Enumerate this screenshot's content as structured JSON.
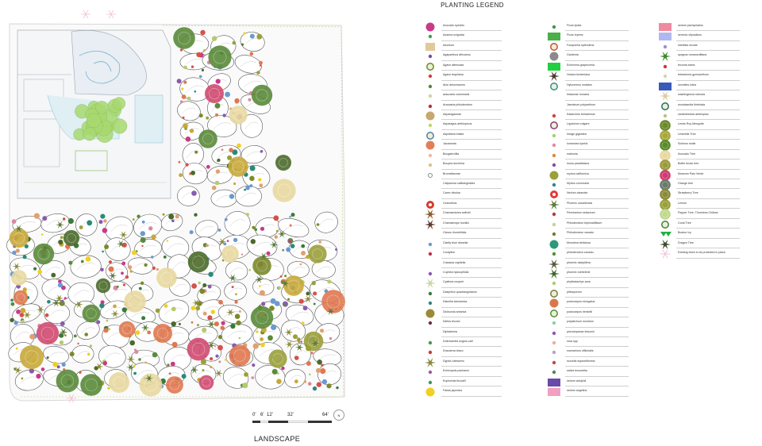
{
  "legend": {
    "title": "PLANTING LEGEND",
    "columns": [
      [
        {
          "label": "Avocado species",
          "icon": "pink-disc-icon",
          "color": "#c83a88"
        },
        {
          "label": "Acaena ovignata",
          "icon": "green-dot-icon",
          "color": "#3aa04a"
        },
        {
          "label": "Aeonium",
          "icon": "tan-square-icon",
          "color": "#e2c99a"
        },
        {
          "label": "Agapanthus africanus",
          "icon": "purple-dot-icon",
          "color": "#7a4aa0"
        },
        {
          "label": "Agave attenuata",
          "icon": "green-ring-icon",
          "color": "#6a8a2a"
        },
        {
          "label": "Agave tequilana",
          "icon": "red-dot-icon",
          "color": "#d0403a"
        },
        {
          "label": "Aloe arborescens",
          "icon": "green-dot-icon",
          "color": "#4e8a3a"
        },
        {
          "label": "araucaria columnaris",
          "icon": "pale-dot-icon",
          "color": "#c9d6a0"
        },
        {
          "label": "Araucaria philodendron",
          "icon": "red-dot-icon",
          "color": "#b8303a"
        },
        {
          "label": "Asparagaceae",
          "icon": "tan-disc-icon",
          "color": "#c8a870"
        },
        {
          "label": "Asparagus aethiopicus",
          "icon": "lime-dot-icon",
          "color": "#b9d86a"
        },
        {
          "label": "Aspidistra elatior",
          "icon": "blue-ring-icon",
          "color": "#5a7aa8"
        },
        {
          "label": "Jacaranda",
          "icon": "orange-pink-disc-icon",
          "color": "#e0805a"
        },
        {
          "label": "Bougainvillia",
          "icon": "peach-dot-icon",
          "color": "#f0b8a0"
        },
        {
          "label": "Bouyea dochrina",
          "icon": "tan-dot-icon",
          "color": "#e0c08a"
        },
        {
          "label": "Bromeliaceae",
          "icon": "open-circle-icon",
          "color": "#666666"
        },
        {
          "label": "Calystoma callistegioides",
          "icon": "none",
          "color": "#ffffff"
        },
        {
          "label": "Carex divulsa",
          "icon": "none",
          "color": "#ffffff"
        },
        {
          "label": "Ceanothus",
          "icon": "red-flower-icon",
          "color": "#d83a2a"
        },
        {
          "label": "Chamaedorea seifrizii",
          "icon": "star-palm-icon",
          "color": "#8a5a2a"
        },
        {
          "label": "Chamaerops humilis",
          "icon": "dark-star-icon",
          "color": "#5a3a2a"
        },
        {
          "label": "Cissus rhombifolia",
          "icon": "none",
          "color": "#ffffff"
        },
        {
          "label": "Clarity blue dianella",
          "icon": "blue-dot-icon",
          "color": "#6a9ad0"
        },
        {
          "label": "Cordyline",
          "icon": "red-dot-icon",
          "color": "#c0304a"
        },
        {
          "label": "Crassula capitella",
          "icon": "none",
          "color": "#ffffff"
        },
        {
          "label": "Cuphea hyssopifolia",
          "icon": "purple-dot-icon",
          "color": "#8a5ab0"
        },
        {
          "label": "Cyathea cooperi",
          "icon": "pale-star-icon",
          "color": "#c8d8a8"
        },
        {
          "label": "Dasylirion quadrangulatum",
          "icon": "green-dot-icon",
          "color": "#3a7a3a"
        },
        {
          "label": "Dianella tasmanica",
          "icon": "teal-dot-icon",
          "color": "#2a8a7a"
        },
        {
          "label": "Dicksonia antarica",
          "icon": "olive-disc-icon",
          "color": "#9a8a3a"
        },
        {
          "label": "Dietes bicolor",
          "icon": "maroon-dot-icon",
          "color": "#7a2a3a"
        },
        {
          "label": "Diplademia",
          "icon": "none",
          "color": "#ffffff"
        },
        {
          "label": "Dolichandra unguis-cati",
          "icon": "green-dot-icon",
          "color": "#4a9a4a"
        },
        {
          "label": "Dracaena draco",
          "icon": "red-dot-icon",
          "color": "#c83a3a"
        },
        {
          "label": "Dypsis lutescens",
          "icon": "palm-star-icon",
          "color": "#8a8a3a"
        },
        {
          "label": "Echinopsis pachanoi",
          "icon": "purple-dot-icon",
          "color": "#9a5ab8"
        },
        {
          "label": "Euphorbia tirucalli",
          "icon": "green-dot-icon",
          "color": "#3a9a5a"
        },
        {
          "label": "Fatsia japonica",
          "icon": "yellow-disc-icon",
          "color": "#f0d020"
        }
      ],
      [
        {
          "label": "Ficus lyrata",
          "icon": "green-dot-icon",
          "color": "#3a9a4a"
        },
        {
          "label": "Ficus repens",
          "icon": "green-rect-icon",
          "color": "#4ab04a"
        },
        {
          "label": "Fouquieria splendens",
          "icon": "red-ring-icon",
          "color": "#d04a3a"
        },
        {
          "label": "Gardenia",
          "icon": "grey-disc-icon",
          "color": "#8a8a8a"
        },
        {
          "label": "Echeveria graptoveria",
          "icon": "bright-green-rect-icon",
          "color": "#20d040"
        },
        {
          "label": "Howea forsteriana",
          "icon": "dark-star-icon",
          "color": "#4a3a2a"
        },
        {
          "label": "Hylocereus undatus",
          "icon": "teal-ring-icon",
          "color": "#3a8a8a"
        },
        {
          "label": "Iridaceae moraea",
          "icon": "none",
          "color": "#ffffff"
        },
        {
          "label": "Jasminum polyanthum",
          "icon": "none",
          "color": "#ffffff"
        },
        {
          "label": "Kalanchoe beharensis",
          "icon": "red-dot-icon",
          "color": "#c84a3a"
        },
        {
          "label": "Ligustrum vulgare",
          "icon": "purple-ring-icon",
          "color": "#8a3a6a"
        },
        {
          "label": "Image gigantea",
          "icon": "lime-dot-icon",
          "color": "#a8d06a"
        },
        {
          "label": "lomandra hystrix",
          "icon": "pink-dot-icon",
          "color": "#e08aa0"
        },
        {
          "label": "mahonia",
          "icon": "orange-dot-icon",
          "color": "#e08a3a"
        },
        {
          "label": "musa paradisiaca",
          "icon": "purple-dot-icon",
          "color": "#8a4aa0"
        },
        {
          "label": "myrica californica",
          "icon": "olive-disc-icon",
          "color": "#9aa03a"
        },
        {
          "label": "Myrtus communis",
          "icon": "teal-dot-icon",
          "color": "#2a8a8a"
        },
        {
          "label": "Nerium oleander",
          "icon": "red-flower-icon",
          "color": "#e03a3a"
        },
        {
          "label": "Phoenix canariensis",
          "icon": "palm-star-icon",
          "color": "#5a7a3a"
        },
        {
          "label": "Pennisetum setaceum",
          "icon": "red-dot-icon",
          "color": "#b83a3a"
        },
        {
          "label": "Philodendron bipinnatifidum",
          "icon": "pale-dot-icon",
          "color": "#c8d0a0"
        },
        {
          "label": "Philodendron xanadu",
          "icon": "olive-dot-icon",
          "color": "#7a7a2a"
        },
        {
          "label": "Monstera deliciosa",
          "icon": "teal-disc-icon",
          "color": "#2a9a7a"
        },
        {
          "label": "philodendron xanadu",
          "icon": "green-dot-icon",
          "color": "#5a8a3a"
        },
        {
          "label": "phoenix dactylifera",
          "icon": "star-palm-icon",
          "color": "#5a5a3a"
        },
        {
          "label": "phoenix roebelenii",
          "icon": "green-star-icon",
          "color": "#3a6a2a"
        },
        {
          "label": "phyllostachys aura",
          "icon": "lime-dot-icon",
          "color": "#b0c870"
        },
        {
          "label": "pittosporum",
          "icon": "olive-ring-icon",
          "color": "#7a7a3a"
        },
        {
          "label": "podocarpus elongatus",
          "icon": "orange-pink-disc-icon",
          "color": "#d8784a"
        },
        {
          "label": "podocarpus henkelii",
          "icon": "green-ring-icon",
          "color": "#5a8a3a"
        },
        {
          "label": "polystichum munitum",
          "icon": "mint-dot-icon",
          "color": "#8ad0a8"
        },
        {
          "label": "pseudopanax lessonii",
          "icon": "purple-dot-icon",
          "color": "#8a5ab0"
        },
        {
          "label": "rosa spp",
          "icon": "peach-dot-icon",
          "color": "#f0b090"
        },
        {
          "label": "rosmarinus officinalis",
          "icon": "lilac-dot-icon",
          "color": "#b8a0d0"
        },
        {
          "label": "ruscelia equisetiformis",
          "icon": "red-dot-icon",
          "color": "#c04a4a"
        },
        {
          "label": "salvia leucantha",
          "icon": "green-dot-icon",
          "color": "#4a8a5a"
        },
        {
          "label": "sedum adolphii",
          "icon": "indigo-rect-icon",
          "color": "#6a4aa8"
        },
        {
          "label": "sedum angelina",
          "icon": "pink-rect-icon",
          "color": "#f0a0c0"
        }
      ],
      [
        {
          "label": "sedum pachyclados",
          "icon": "rose-rect-icon",
          "color": "#f08aa0"
        },
        {
          "label": "senecio vitynalicus",
          "icon": "periwinkle-rect-icon",
          "color": "#b0b8f0"
        },
        {
          "label": "strelitzia nicolai",
          "icon": "lilac-dot-icon",
          "color": "#a090c8"
        },
        {
          "label": "syagrus romanzoffiana",
          "icon": "green-star-icon",
          "color": "#3a8a2a"
        },
        {
          "label": "tecoma stans",
          "icon": "red-dot-icon",
          "color": "#c83a3a"
        },
        {
          "label": "tetrastoma gymnanthum",
          "icon": "pale-dot-icon",
          "color": "#d0d8b0"
        },
        {
          "label": "uncinites lutea",
          "icon": "blue-rect-icon",
          "color": "#3a5ab8"
        },
        {
          "label": "washingtonia robusta",
          "icon": "pale-star-icon",
          "color": "#d8d0a0"
        },
        {
          "label": "woodwardia fimbriata",
          "icon": "teal-ring-icon",
          "color": "#2a6a5a"
        },
        {
          "label": "zantedeschia aethiopica",
          "icon": "tan-dot-icon",
          "color": "#c8b890"
        },
        {
          "label": "Leeds Roy Mesquite",
          "icon": "green-tree-icon",
          "color": "#6a8a2a"
        },
        {
          "label": "Umbrella Tree",
          "icon": "olive-tree-icon",
          "color": "#a8a83a"
        },
        {
          "label": "Schinus molle",
          "icon": "green-tree-icon",
          "color": "#5a8a2a"
        },
        {
          "label": "Avocado Tree",
          "icon": "cream-tree-icon",
          "color": "#e8d8a0"
        },
        {
          "label": "Bottle brush tree",
          "icon": "olive-tree-icon",
          "color": "#9a9a3a"
        },
        {
          "label": "Museum Palo Verde",
          "icon": "magenta-tree-icon",
          "color": "#d03a70"
        },
        {
          "label": "Orange tree",
          "icon": "slate-tree-icon",
          "color": "#6a7a6a"
        },
        {
          "label": "Strawberry Tree",
          "icon": "olive-tree-icon",
          "color": "#8a8a3a"
        },
        {
          "label": "Lemon",
          "icon": "olive-tree-icon",
          "color": "#9aa03a"
        },
        {
          "label": "Pepper Tree, Thornless Chilean",
          "icon": "lime-tree-icon",
          "color": "#c0d890"
        },
        {
          "label": "Coral Tree",
          "icon": "green-ring-icon",
          "color": "#4a7a3a"
        },
        {
          "label": "Boston Ivy",
          "icon": "green-triangle-icon",
          "color": "#20b040"
        },
        {
          "label": "Dragon Tree",
          "icon": "dark-star-icon",
          "color": "#3a4a2a"
        },
        {
          "label": "Existing trees to be protected in place",
          "icon": "pink-flower-outline-icon",
          "color": "#f0c0d8"
        }
      ]
    ]
  },
  "scale": {
    "ticks": [
      "0'",
      "6'",
      "12'",
      "32'",
      "64'"
    ]
  },
  "plan_title": "LANDSCAPE"
}
